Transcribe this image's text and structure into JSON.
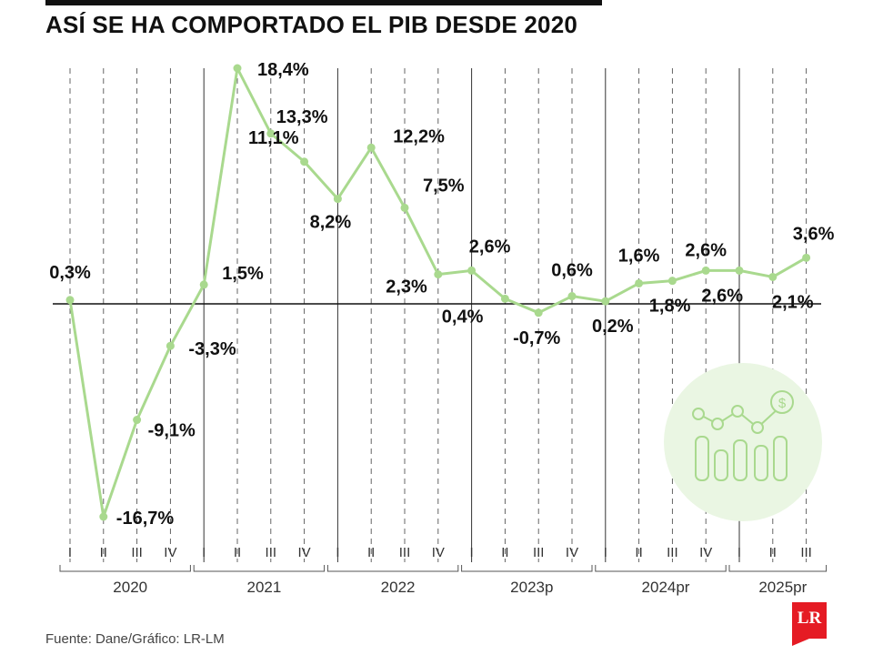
{
  "title": "ASÍ SE HA COMPORTADO EL PIB DESDE 2020",
  "source": "Fuente: Dane/Gráfico: LR-LM",
  "logo_text": "LR",
  "colors": {
    "line": "#a9d98e",
    "icon_circle": "#eaf6e3",
    "icon_stroke": "#a9d98e",
    "logo": "#e51b24"
  },
  "chart_data": {
    "type": "line",
    "title": "ASÍ SE HA COMPORTADO EL PIB DESDE 2020",
    "xlabel": "",
    "ylabel": "",
    "years": [
      "2020",
      "2021",
      "2022",
      "2023p",
      "2024pr",
      "2025pr"
    ],
    "quarters": [
      "I",
      "II",
      "III",
      "IV",
      "I",
      "II",
      "III",
      "IV",
      "I",
      "II",
      "III",
      "IV",
      "I",
      "II",
      "III",
      "IV",
      "I",
      "II",
      "III",
      "IV",
      "I",
      "II",
      "III"
    ],
    "values": [
      0.3,
      -16.7,
      -9.1,
      -3.3,
      1.5,
      18.4,
      13.3,
      11.1,
      8.2,
      12.2,
      7.5,
      2.3,
      2.6,
      0.4,
      -0.7,
      0.6,
      0.2,
      1.6,
      1.8,
      2.6,
      2.6,
      2.1,
      3.6
    ],
    "labels": [
      "0,3%",
      "-16,7%",
      "-9,1%",
      "-3,3%",
      "1,5%",
      "18,4%",
      "13,3%",
      "11,1%",
      "8,2%",
      "12,2%",
      "7,5%",
      "2,3%",
      "2,6%",
      "0,4%",
      "-0,7%",
      "0,6%",
      "0,2%",
      "1,6%",
      "1,8%",
      "2,6%",
      "2,6%",
      "2,1%",
      "3,6%"
    ],
    "ylim": [
      -17,
      19
    ],
    "grid": true,
    "legend": "none"
  }
}
